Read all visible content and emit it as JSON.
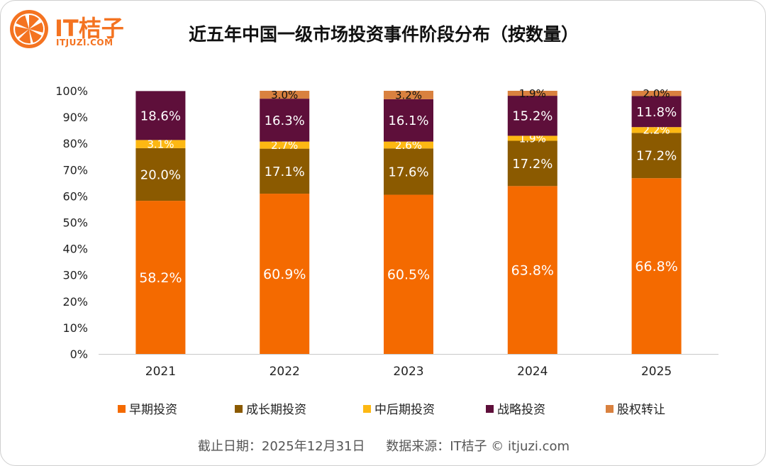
{
  "brand": {
    "name": "IT桔子",
    "url": "ITJUZI.COM"
  },
  "colors": {
    "early": "#f46a00",
    "growth": "#8b5a00",
    "late": "#fdb813",
    "strategic": "#5e0f3a",
    "equity": "#d9813f"
  },
  "chart_data": {
    "type": "bar",
    "stacked": true,
    "title": "近五年中国一级市场投资事件阶段分布（按数量）",
    "categories": [
      "2021",
      "2022",
      "2023",
      "2024",
      "2025"
    ],
    "y_ticks": [
      "0%",
      "10%",
      "20%",
      "30%",
      "40%",
      "50%",
      "60%",
      "70%",
      "80%",
      "90%",
      "100%"
    ],
    "ylim": [
      0,
      100
    ],
    "legend_position": "bottom",
    "series": [
      {
        "name": "早期投资",
        "values": [
          58.2,
          60.9,
          60.5,
          63.8,
          66.8
        ],
        "labels": [
          "58.2%",
          "60.9%",
          "60.5%",
          "63.8%",
          "66.8%"
        ]
      },
      {
        "name": "成长期投资",
        "values": [
          20.0,
          17.1,
          17.6,
          17.2,
          17.2
        ],
        "labels": [
          "20.0%",
          "17.1%",
          "17.6%",
          "17.2%",
          "17.2%"
        ]
      },
      {
        "name": "中后期投资",
        "values": [
          3.1,
          2.7,
          2.6,
          1.9,
          2.2
        ],
        "labels": [
          "3.1%",
          "2.7%",
          "2.6%",
          "1.9%",
          "2.2%"
        ]
      },
      {
        "name": "战略投资",
        "values": [
          18.6,
          16.3,
          16.1,
          15.2,
          11.8
        ],
        "labels": [
          "18.6%",
          "16.3%",
          "16.1%",
          "15.2%",
          "11.8%"
        ]
      },
      {
        "name": "股权转让",
        "values": [
          0,
          3.0,
          3.2,
          1.9,
          2.0
        ],
        "labels": [
          "",
          "3.0%",
          "3.2%",
          "1.9%",
          "2.0%"
        ]
      }
    ]
  },
  "footer": {
    "date": "截止日期：2025年12月31日",
    "source": "数据来源：IT桔子 © itjuzi.com"
  }
}
